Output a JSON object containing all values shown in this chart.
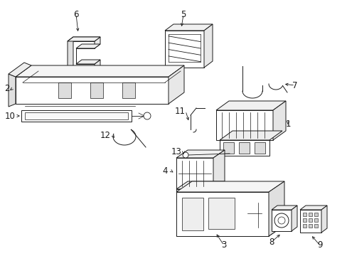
{
  "bg_color": "#ffffff",
  "line_color": "#1a1a1a",
  "fig_width": 4.89,
  "fig_height": 3.6,
  "dpi": 100,
  "lw": 0.7,
  "label_fontsize": 8.5
}
